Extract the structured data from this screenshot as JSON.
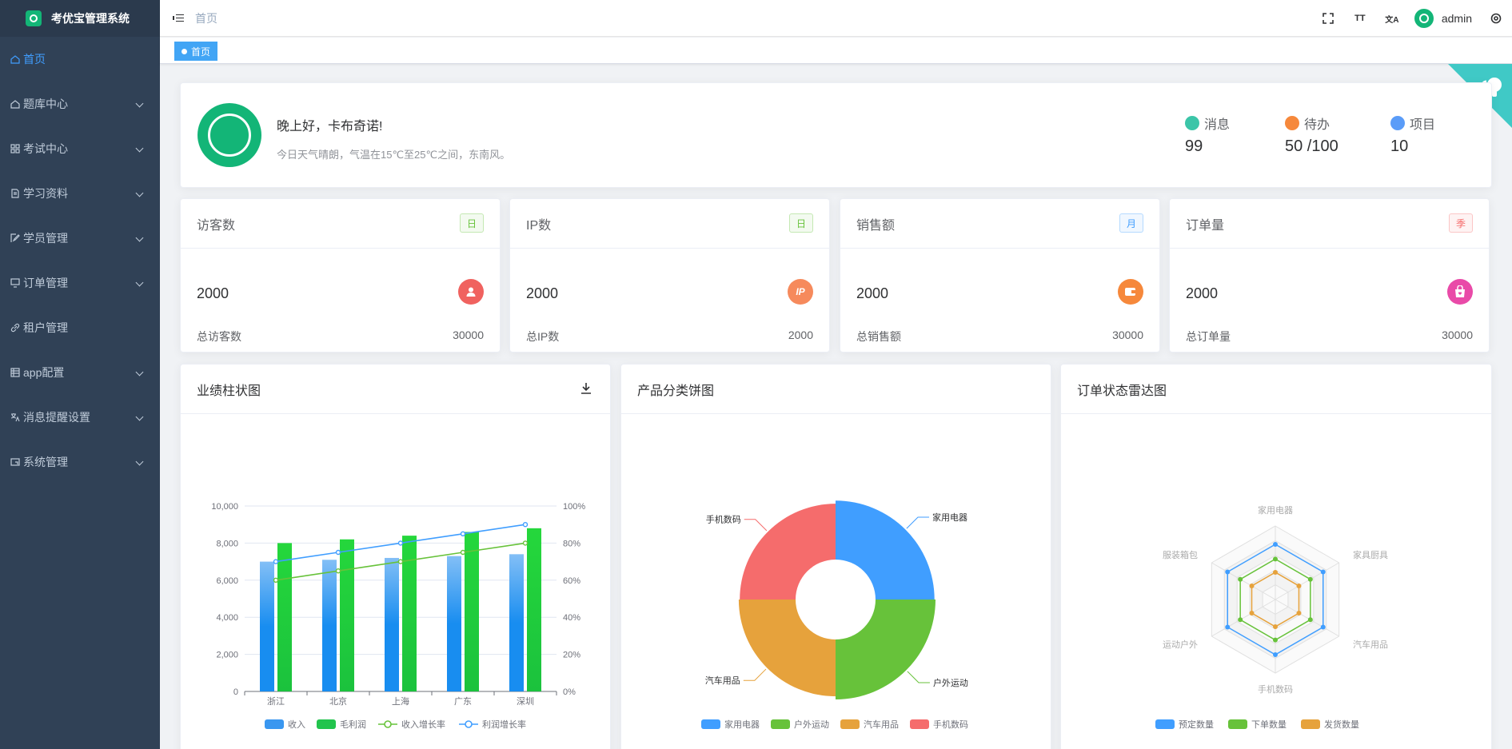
{
  "app": {
    "title": "考优宝管理系统"
  },
  "sidebar": {
    "items": [
      {
        "label": "首页",
        "icon": "home-icon",
        "active": true,
        "has_children": false
      },
      {
        "label": "题库中心",
        "icon": "home-icon",
        "has_children": true
      },
      {
        "label": "考试中心",
        "icon": "grid-icon",
        "has_children": true
      },
      {
        "label": "学习资料",
        "icon": "document-icon",
        "has_children": true
      },
      {
        "label": "学员管理",
        "icon": "edit-icon",
        "has_children": true
      },
      {
        "label": "订单管理",
        "icon": "monitor-icon",
        "has_children": true
      },
      {
        "label": "租户管理",
        "icon": "link-icon",
        "has_children": false
      },
      {
        "label": "app配置",
        "icon": "table-icon",
        "has_children": true
      },
      {
        "label": "消息提醒设置",
        "icon": "translate-icon",
        "has_children": true
      },
      {
        "label": "系统管理",
        "icon": "screen-icon",
        "has_children": true
      }
    ]
  },
  "header": {
    "breadcrumb": "首页",
    "username": "admin",
    "font_size_label": "TT",
    "translate_label": "文A"
  },
  "tags": {
    "active": "首页"
  },
  "welcome": {
    "greeting": "晚上好，卡布奇诺!",
    "weather": "今日天气晴朗，气温在15℃至25℃之间，东南风。",
    "stats": [
      {
        "label": "消息",
        "value": "99",
        "color": "#3bc5a8"
      },
      {
        "label": "待办",
        "value": "50 /100",
        "color": "#f6883b"
      },
      {
        "label": "项目",
        "value": "10",
        "color": "#5a9cf8"
      }
    ]
  },
  "metrics": [
    {
      "title": "访客数",
      "badge": "日",
      "badge_color": "#67c23a",
      "value": "2000",
      "icon": "user-icon",
      "icon_color": "#f0625f",
      "foot_label": "总访客数",
      "foot_value": "30000"
    },
    {
      "title": "IP数",
      "badge": "日",
      "badge_color": "#67c23a",
      "value": "2000",
      "icon": "ip-icon",
      "icon_color": "#f68a5c",
      "icon_text": "IP",
      "foot_label": "总IP数",
      "foot_value": "2000"
    },
    {
      "title": "销售额",
      "badge": "月",
      "badge_color": "#409eff",
      "value": "2000",
      "icon": "wallet-icon",
      "icon_color": "#f6883b",
      "foot_label": "总销售额",
      "foot_value": "30000"
    },
    {
      "title": "订单量",
      "badge": "季",
      "badge_color": "#f56c6c",
      "value": "2000",
      "icon": "shopping-bag-icon",
      "icon_color": "#e94aa8",
      "foot_label": "总订单量",
      "foot_value": "30000"
    }
  ],
  "charts": {
    "bar_title": "业绩柱状图",
    "pie_title": "产品分类饼图",
    "radar_title": "订单状态雷达图"
  },
  "chart_data": [
    {
      "type": "bar",
      "title": "业绩柱状图",
      "categories": [
        "浙江",
        "北京",
        "上海",
        "广东",
        "深圳"
      ],
      "series": [
        {
          "name": "收入",
          "kind": "bar",
          "values": [
            7000,
            7100,
            7200,
            7300,
            7400
          ],
          "color": "#3a97f0"
        },
        {
          "name": "毛利润",
          "kind": "bar",
          "values": [
            8000,
            8200,
            8400,
            8600,
            8800
          ],
          "color": "#22c44d"
        },
        {
          "name": "收入增长率",
          "kind": "line",
          "axis": "right",
          "values": [
            60,
            65,
            70,
            75,
            80
          ],
          "color": "#67c23a"
        },
        {
          "name": "利润增长率",
          "kind": "line",
          "axis": "right",
          "values": [
            70,
            75,
            80,
            85,
            90
          ],
          "color": "#409eff"
        }
      ],
      "ylim": [
        0,
        10000
      ],
      "yticks": [
        "0",
        "2,000",
        "4,000",
        "6,000",
        "8,000",
        "10,000"
      ],
      "y2lim": [
        0,
        100
      ],
      "y2ticks": [
        "0%",
        "20%",
        "40%",
        "60%",
        "80%",
        "100%"
      ],
      "legend": "bottom"
    },
    {
      "type": "pie",
      "title": "产品分类饼图",
      "style": "rose-donut",
      "categories": [
        "家用电器",
        "户外运动",
        "汽车用品",
        "手机数码"
      ],
      "values": [
        26,
        27,
        24,
        23
      ],
      "colors": [
        "#409eff",
        "#67c23a",
        "#e6a23c",
        "#f56c6c"
      ],
      "legend": "bottom"
    },
    {
      "type": "radar",
      "title": "订单状态雷达图",
      "indicators": [
        "家用电器",
        "家具厨具",
        "汽车用品",
        "手机数码",
        "运动户外",
        "服装箱包"
      ],
      "max": 100,
      "series": [
        {
          "name": "预定数量",
          "values": [
            75,
            75,
            75,
            75,
            75,
            75
          ],
          "color": "#409eff"
        },
        {
          "name": "下单数量",
          "values": [
            55,
            55,
            55,
            55,
            55,
            55
          ],
          "color": "#67c23a"
        },
        {
          "name": "发货数量",
          "values": [
            37,
            37,
            37,
            37,
            37,
            37
          ],
          "color": "#e6a23c"
        }
      ],
      "legend": "bottom"
    }
  ]
}
